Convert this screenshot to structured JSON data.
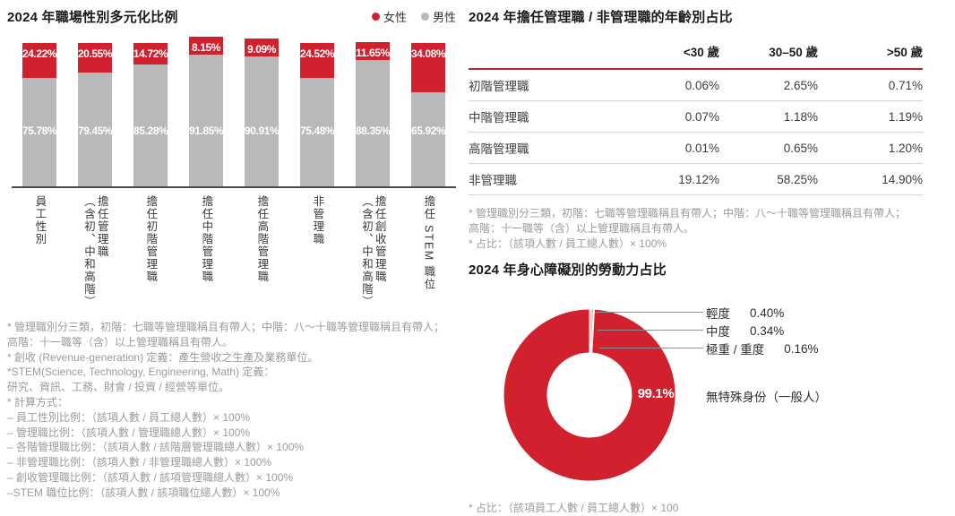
{
  "colors": {
    "female_red": "#d2212e",
    "male_gray": "#b9b9b9",
    "axis": "#4a4a4a",
    "table_header_rule": "#c9202e",
    "table_row_rule": "#d4d4d4",
    "footnote_gray": "#9b9b9b",
    "leader_line": "#8f8f8f"
  },
  "chart_data": [
    {
      "id": "gender-diversity-bar",
      "type": "bar",
      "variant": "stacked-100-percent",
      "title": "2024 年職場性別多元化比例",
      "legend_position": "top-right",
      "value_suffix": "%",
      "categories": [
        [
          "員工性別"
        ],
        [
          "擔任管理職",
          "（含初、中和高階）"
        ],
        [
          "擔任初階管理職"
        ],
        [
          "擔任中階管理職"
        ],
        [
          "擔任高階管理職"
        ],
        [
          "非管理職"
        ],
        [
          "擔任創收管理職",
          "（含初、中和高階）"
        ],
        [
          "擔任 STEM 職位"
        ]
      ],
      "series": [
        {
          "name": "女性",
          "color": "#d2212e",
          "values": [
            24.22,
            20.55,
            14.72,
            8.15,
            9.09,
            24.52,
            11.65,
            34.08
          ]
        },
        {
          "name": "男性",
          "color": "#b9b9b9",
          "values": [
            75.78,
            79.45,
            85.28,
            91.85,
            90.91,
            75.48,
            88.35,
            65.92
          ]
        }
      ],
      "ylim": [
        0,
        100
      ],
      "grid": false
    },
    {
      "id": "age-by-role-table",
      "type": "table",
      "title": "2024 年擔任管理職 / 非管理職的年齡別占比",
      "columns": [
        "",
        "<30 歲",
        "30–50 歲",
        ">50 歲"
      ],
      "rows": [
        [
          "初階管理職",
          "0.06%",
          "2.65%",
          "0.71%"
        ],
        [
          "中階管理職",
          "0.07%",
          "1.18%",
          "1.19%"
        ],
        [
          "高階管理職",
          "0.01%",
          "0.65%",
          "1.20%"
        ],
        [
          "非管理職",
          "19.12%",
          "58.25%",
          "14.90%"
        ]
      ]
    },
    {
      "id": "disability-donut",
      "type": "pie",
      "variant": "donut",
      "title": "2024 年身心障礙別的勞動力占比",
      "slices": [
        {
          "label": "輕度",
          "value": 0.4,
          "value_label": "0.40%",
          "color": "#efa193"
        },
        {
          "label": "中度",
          "value": 0.34,
          "value_label": "0.34%",
          "color": "#e5836f"
        },
        {
          "label": "極重 / 重度",
          "value": 0.16,
          "value_label": "0.16%",
          "color": "#cc5544"
        },
        {
          "label": "無特殊身份（一般人）",
          "value": 99.1,
          "value_label": "99.1%",
          "color": "#d2212e"
        }
      ]
    }
  ],
  "footnotes": {
    "left": [
      "* 管理職別分三類，初階：七職等管理職稱且有帶人；中階：八～十職等管理職稱且有帶人；",
      "高階：十一職等（含）以上管理職稱且有帶人。",
      "* 創收 (Revenue-generation) 定義：產生營收之生產及業務單位。",
      "*STEM(Science, Technology, Engineering, Math) 定義：",
      "研究、資訊、工務、財會 / 投資 / 經營等單位。",
      "* 計算方式：",
      "– 員工性別比例：（該項人數 / 員工總人數）× 100%",
      "– 管理職比例：（該項人數 / 管理職總人數）× 100%",
      "– 各階管理職比例：（該項人數 / 該階層管理職總人數）× 100%",
      "– 非管理職比例：（該項人數 / 非管理職總人數）× 100%",
      "– 創收管理職比例：（該項人數 / 該項管理職總人數）× 100%",
      "–STEM 職位比例：（該項人數 / 該項職位總人數）× 100%"
    ],
    "table": [
      "* 管理職別分三類，初階：七職等管理職稱且有帶人；中階：八～十職等管理職稱且有帶人；",
      "高階：十一職等（含）以上管理職稱且有帶人。",
      "* 占比：（該項人數 / 員工總人數）× 100%"
    ],
    "donut": [
      "* 占比：（該項員工人數 / 員工總人數）× 100"
    ]
  }
}
